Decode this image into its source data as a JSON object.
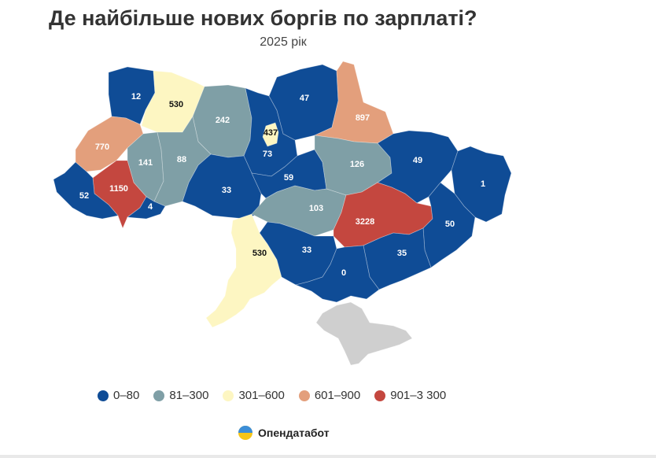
{
  "title": "Де найбільше нових боргів по зарплаті?",
  "subtitle": "2025 рік",
  "colors": {
    "0–80": "#0f4c96",
    "81–300": "#7f9fa6",
    "301–600": "#fdf6c2",
    "601–900": "#e39f7c",
    "901–3 300": "#c4473f",
    "occupied": "#cfcfcf"
  },
  "legend": [
    {
      "label": "0–80",
      "color": "#0f4c96"
    },
    {
      "label": "81–300",
      "color": "#7f9fa6"
    },
    {
      "label": "301–600",
      "color": "#fdf6c2"
    },
    {
      "label": "601–900",
      "color": "#e39f7c"
    },
    {
      "label": "901–3 300",
      "color": "#c4473f"
    }
  ],
  "regions": [
    {
      "id": "volyn",
      "value": "12",
      "bin": "0–80"
    },
    {
      "id": "rivne",
      "value": "530",
      "bin": "301–600"
    },
    {
      "id": "zhytomyr",
      "value": "242",
      "bin": "81–300"
    },
    {
      "id": "kyiv-city",
      "value": "437",
      "bin": "301–600"
    },
    {
      "id": "kyiv-oblast",
      "value": "73",
      "bin": "0–80"
    },
    {
      "id": "chernihiv",
      "value": "47",
      "bin": "0–80"
    },
    {
      "id": "sumy",
      "value": "897",
      "bin": "601–900"
    },
    {
      "id": "lviv",
      "value": "770",
      "bin": "601–900"
    },
    {
      "id": "ternopil",
      "value": "141",
      "bin": "81–300"
    },
    {
      "id": "khmelnytskyi",
      "value": "88",
      "bin": "81–300"
    },
    {
      "id": "ivano-frankivsk",
      "value": "1150",
      "bin": "901–3 300"
    },
    {
      "id": "zakarpattia",
      "value": "52",
      "bin": "0–80"
    },
    {
      "id": "chernivtsi",
      "value": "4",
      "bin": "0–80"
    },
    {
      "id": "vinnytsia",
      "value": "33",
      "bin": "0–80"
    },
    {
      "id": "cherkasy",
      "value": "59",
      "bin": "0–80"
    },
    {
      "id": "poltava",
      "value": "126",
      "bin": "81–300"
    },
    {
      "id": "kharkiv",
      "value": "49",
      "bin": "0–80"
    },
    {
      "id": "luhansk",
      "value": "1",
      "bin": "0–80"
    },
    {
      "id": "kirovohrad",
      "value": "103",
      "bin": "81–300"
    },
    {
      "id": "dnipropetrovsk",
      "value": "3228",
      "bin": "901–3 300"
    },
    {
      "id": "donetsk",
      "value": "50",
      "bin": "0–80"
    },
    {
      "id": "odesa",
      "value": "530",
      "bin": "301–600"
    },
    {
      "id": "mykolaiv",
      "value": "33",
      "bin": "0–80"
    },
    {
      "id": "zaporizhzhia",
      "value": "35",
      "bin": "0–80"
    },
    {
      "id": "kherson",
      "value": "0",
      "bin": "0–80"
    },
    {
      "id": "crimea",
      "value": "",
      "bin": "occupied"
    }
  ],
  "brand": {
    "name": "Опендатабот"
  }
}
